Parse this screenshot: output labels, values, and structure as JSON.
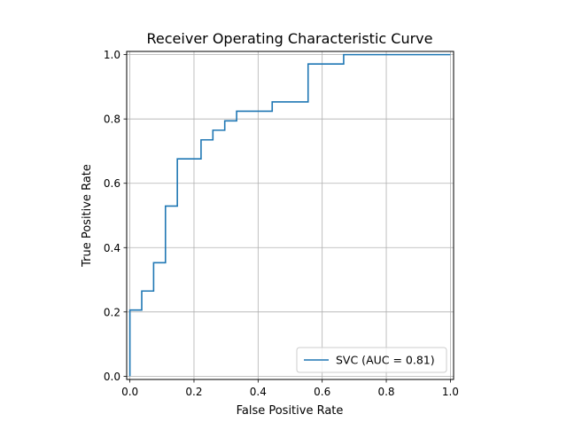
{
  "chart_data": {
    "type": "line",
    "title": "Receiver Operating Characteristic Curve",
    "xlabel": "False Positive Rate",
    "ylabel": "True Positive Rate",
    "xlim": [
      -0.01,
      1.01
    ],
    "ylim": [
      -0.01,
      1.01
    ],
    "x_ticks": [
      0.0,
      0.2,
      0.4,
      0.6,
      0.8,
      1.0
    ],
    "x_tick_labels": [
      "0.0",
      "0.2",
      "0.4",
      "0.6",
      "0.8",
      "1.0"
    ],
    "y_ticks": [
      0.0,
      0.2,
      0.4,
      0.6,
      0.8,
      1.0
    ],
    "y_tick_labels": [
      "0.0",
      "0.2",
      "0.4",
      "0.6",
      "0.8",
      "1.0"
    ],
    "grid": true,
    "legend_position": "lower-right",
    "series": [
      {
        "name": "SVC (AUC = 0.81)",
        "color": "#1f77b4",
        "drawstyle": "steps-post",
        "x": [
          0.0,
          0.0,
          0.037,
          0.037,
          0.074,
          0.074,
          0.111,
          0.111,
          0.148,
          0.148,
          0.222,
          0.222,
          0.259,
          0.259,
          0.296,
          0.296,
          0.333,
          0.333,
          0.444,
          0.444,
          0.556,
          0.556,
          0.667,
          0.667,
          1.0
        ],
        "y": [
          0.0,
          0.206,
          0.206,
          0.265,
          0.265,
          0.353,
          0.353,
          0.529,
          0.529,
          0.676,
          0.676,
          0.735,
          0.735,
          0.765,
          0.765,
          0.794,
          0.794,
          0.824,
          0.824,
          0.853,
          0.853,
          0.971,
          0.971,
          1.0,
          1.0
        ]
      }
    ]
  }
}
